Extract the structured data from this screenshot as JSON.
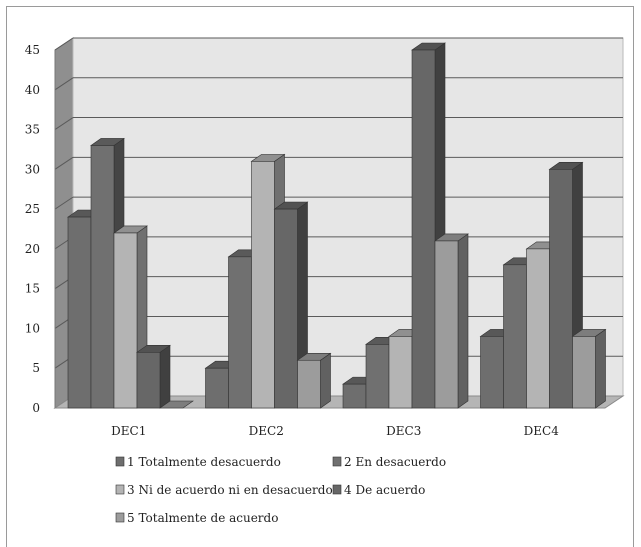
{
  "chart_data": {
    "type": "bar",
    "categories": [
      "DEC1",
      "DEC2",
      "DEC3",
      "DEC4"
    ],
    "series": [
      {
        "name": "1 Totalmente desacuerdo",
        "values": [
          24,
          5,
          3,
          9
        ]
      },
      {
        "name": "2 En desacuerdo",
        "values": [
          33,
          19,
          8,
          18
        ]
      },
      {
        "name": "3 Ni de acuerdo ni en desacuerdo",
        "values": [
          22,
          31,
          9,
          20
        ]
      },
      {
        "name": "4 De acuerdo",
        "values": [
          7,
          25,
          45,
          30
        ]
      },
      {
        "name": "5 Totalmente de acuerdo",
        "values": [
          0,
          6,
          21,
          9
        ]
      }
    ],
    "ylim": [
      0,
      45
    ],
    "yticks": [
      0,
      5,
      10,
      15,
      20,
      25,
      30,
      35,
      40,
      45
    ],
    "grid": true,
    "legend": "bottom",
    "series_colors": [
      "#6e6e6e",
      "#707070",
      "#b4b4b4",
      "#676767",
      "#9c9c9c"
    ]
  }
}
